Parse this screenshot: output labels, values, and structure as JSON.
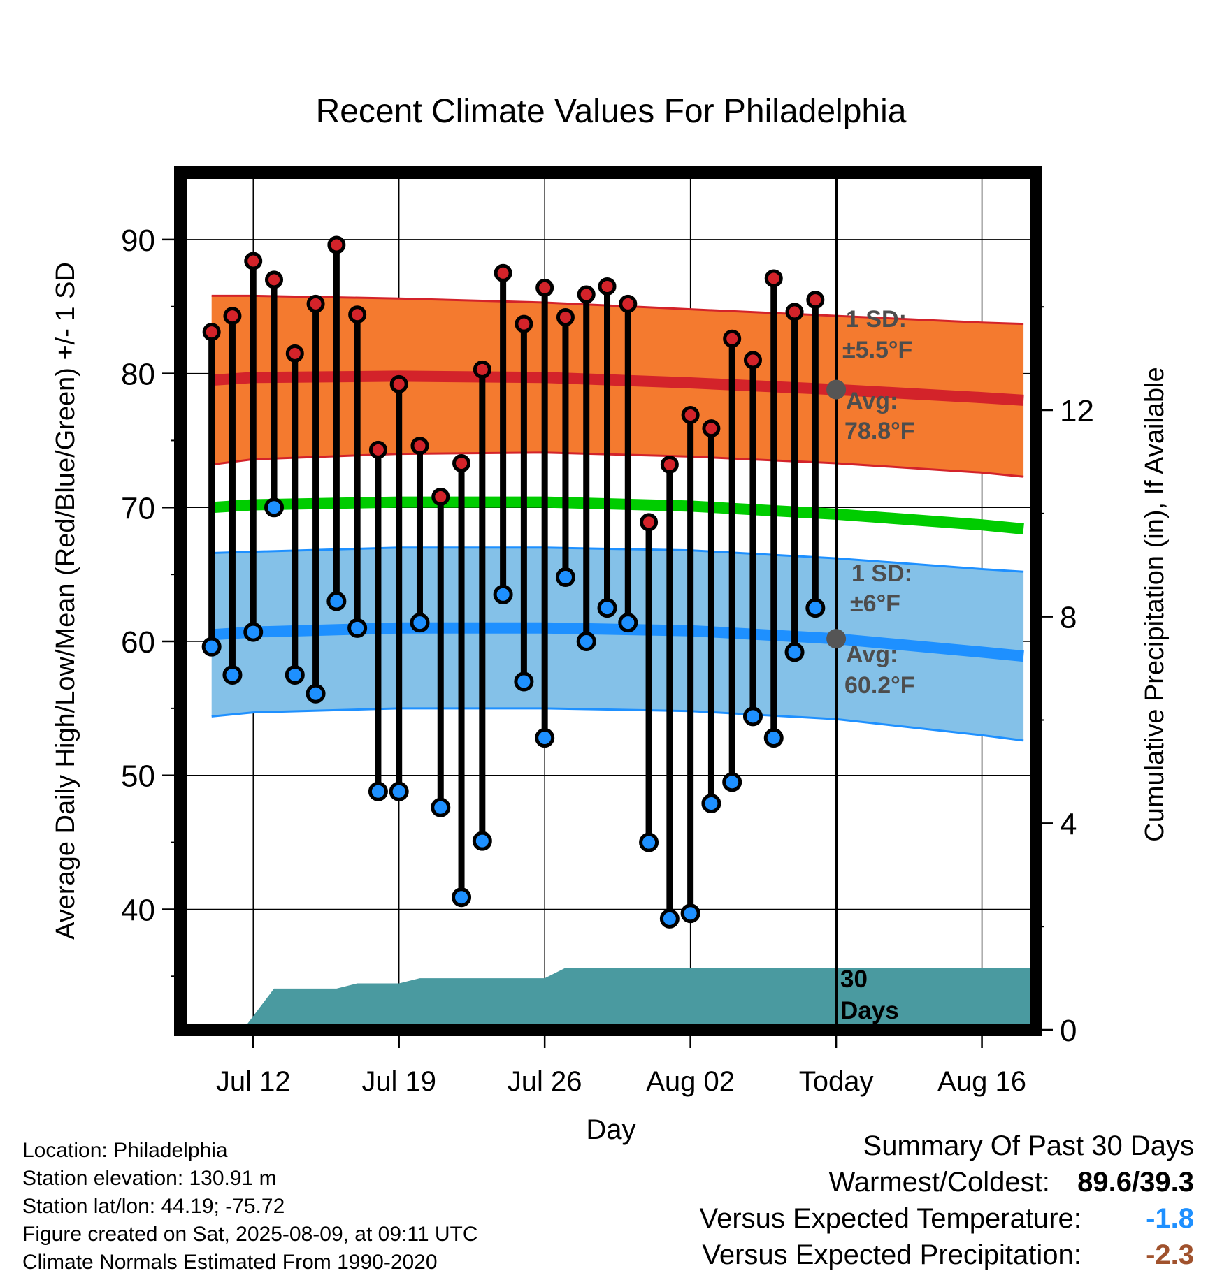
{
  "chart_data": {
    "type": "line",
    "title": "Recent Climate Values For Philadelphia",
    "xlabel": "Day",
    "ylabel": "Average Daily High/Low/Mean (Red/Blue/Green) +/- 1 SD",
    "y2label": "Cumulative Precipitation (in), If Available",
    "ylim": [
      31,
      95
    ],
    "y2lim": [
      0,
      16.6
    ],
    "xlim": [
      -3.5,
      37.6
    ],
    "yticks": [
      40,
      50,
      60,
      70,
      80,
      90
    ],
    "y2ticks": [
      0,
      4,
      8,
      12
    ],
    "xticks": [
      {
        "x": 0,
        "label": "Jul 12"
      },
      {
        "x": 7,
        "label": "Jul 19"
      },
      {
        "x": 14,
        "label": "Jul 26"
      },
      {
        "x": 21,
        "label": "Aug 02"
      },
      {
        "x": 28,
        "label": "Today"
      },
      {
        "x": 35,
        "label": "Aug 16"
      }
    ],
    "x_axis_note": "x = days from Jul 12",
    "grid": true,
    "today_x": 28,
    "days_label": "30 Days",
    "daily": {
      "x": [
        -2,
        -1,
        0,
        1,
        2,
        3,
        4,
        5,
        6,
        7,
        8,
        9,
        10,
        11,
        12,
        13,
        14,
        15,
        16,
        17,
        18,
        19,
        20,
        21,
        22,
        23,
        24,
        25,
        26,
        27
      ],
      "high": [
        83.1,
        84.3,
        88.4,
        87.0,
        81.5,
        85.2,
        89.6,
        84.4,
        74.3,
        79.2,
        74.6,
        70.8,
        73.3,
        80.3,
        87.5,
        83.7,
        86.4,
        84.2,
        85.9,
        86.5,
        85.2,
        68.9,
        73.2,
        76.9,
        75.9,
        82.6,
        81.0,
        87.1,
        84.6,
        85.5
      ],
      "low": [
        59.6,
        57.5,
        60.7,
        70.0,
        57.5,
        56.1,
        63.0,
        61.0,
        48.8,
        48.8,
        61.4,
        47.6,
        40.9,
        45.1,
        63.5,
        57.0,
        52.8,
        64.8,
        60.0,
        62.5,
        61.4,
        45.0,
        39.3,
        39.7,
        47.9,
        49.5,
        54.4,
        52.8,
        59.2,
        62.5
      ]
    },
    "normals": {
      "x": [
        -2,
        0,
        7,
        14,
        21,
        28,
        35,
        37
      ],
      "high_mean": [
        79.5,
        79.7,
        79.8,
        79.7,
        79.3,
        78.8,
        78.2,
        78.0
      ],
      "high_sd": [
        6.3,
        6.1,
        5.8,
        5.6,
        5.5,
        5.5,
        5.6,
        5.7
      ],
      "low_mean": [
        60.5,
        60.7,
        61.0,
        61.0,
        60.8,
        60.2,
        59.2,
        58.9
      ],
      "low_sd": [
        6.1,
        6.0,
        6.0,
        6.0,
        6.0,
        6.0,
        6.2,
        6.3
      ],
      "mean": [
        70.0,
        70.2,
        70.4,
        70.4,
        70.1,
        69.5,
        68.7,
        68.4
      ]
    },
    "precip": {
      "x": [
        -3.5,
        -0.5,
        1.0,
        4.0,
        5.0,
        7.0,
        8.0,
        14.0,
        15.0,
        37.6
      ],
      "y": [
        0.0,
        0.0,
        0.8,
        0.8,
        0.9,
        0.9,
        1.0,
        1.0,
        1.2,
        1.2
      ]
    },
    "annotations": {
      "high_sd": "1 SD:",
      "high_sd_value": "±5.5°F",
      "high_avg": "Avg:",
      "high_avg_value": "78.8°F",
      "low_sd": "1 SD:",
      "low_sd_value": "±6°F",
      "low_avg": "Avg:",
      "low_avg_value": "60.2°F"
    },
    "colors": {
      "high_band": "#f47a2f",
      "high_line": "#d3232a",
      "low_band": "#84c1e8",
      "low_line": "#1e90ff",
      "mean_line": "#00cc00",
      "precip": "#4a9aa0",
      "high_marker": "#d3232a",
      "low_marker": "#1e90ff",
      "annotation": "#4d4d4d"
    }
  },
  "info": {
    "location": "Location: Philadelphia",
    "elevation": "Station elevation: 130.91 m",
    "latlon": "Station lat/lon: 44.19; -75.72",
    "created": "Figure created on Sat, 2025-08-09, at 09:11 UTC",
    "normals": "Climate Normals Estimated From 1990-2020"
  },
  "summary": {
    "title": "Summary Of Past 30 Days",
    "warm_cold_label": "Warmest/Coldest:",
    "warm_cold_value": "89.6/39.3",
    "temp_label": "Versus Expected Temperature:",
    "temp_value": "-1.8",
    "temp_color": "#1e90ff",
    "precip_label": "Versus Expected Precipitation:",
    "precip_value": "-2.3",
    "precip_color": "#a0522d"
  }
}
